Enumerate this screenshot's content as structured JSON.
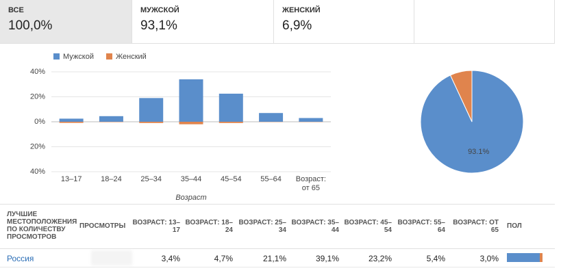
{
  "tabs": [
    {
      "title": "ВСЕ",
      "value": "100,0%"
    },
    {
      "title": "МУЖСКОЙ",
      "value": "93,1%"
    },
    {
      "title": "ЖЕНСКИЙ",
      "value": "6,9%"
    }
  ],
  "chart_data": [
    {
      "type": "bar",
      "x_label": "Возраст",
      "categories": [
        "13–17",
        "18–24",
        "25–34",
        "35–44",
        "45–54",
        "55–64",
        "Возраст: от 65"
      ],
      "series": [
        {
          "name": "Мужской",
          "color": "#5a8ecb",
          "values": [
            2.5,
            4.5,
            19,
            34,
            22.5,
            7,
            3
          ]
        },
        {
          "name": "Женский",
          "color": "#e0844d",
          "values": [
            -0.9,
            -0.3,
            -1.0,
            -2.0,
            -1.0,
            -0.2,
            -0.2
          ]
        }
      ],
      "ylim": [
        -40,
        40
      ],
      "yticks": [
        {
          "value": -40,
          "label": "40%"
        },
        {
          "value": -20,
          "label": "20%"
        },
        {
          "value": 0,
          "label": "0%"
        },
        {
          "value": 20,
          "label": "20%"
        },
        {
          "value": 40,
          "label": "40%"
        }
      ],
      "grid": true
    },
    {
      "type": "pie",
      "values": [
        93.1,
        6.9
      ],
      "colors": [
        "#5a8ecb",
        "#e0844d"
      ],
      "value_labels": [
        "93.1%",
        null
      ]
    }
  ],
  "table": {
    "headers": [
      "ЛУЧШИЕ МЕСТОПОЛОЖЕНИЯ ПО КОЛИЧЕСТВУ ПРОСМОТРОВ",
      "ПРОСМОТРЫ",
      "ВОЗРАСТ: 13–17",
      "ВОЗРАСТ: 18–24",
      "ВОЗРАСТ: 25–34",
      "ВОЗРАСТ: 35–44",
      "ВОЗРАСТ: 45–54",
      "ВОЗРАСТ: 55–64",
      "ВОЗРАСТ: ОТ 65",
      "ПОЛ"
    ],
    "rows": [
      {
        "location": "Россия",
        "ages": [
          "3,4%",
          "4,7%",
          "21,1%",
          "39,1%",
          "23,2%",
          "5,4%",
          "3,0%"
        ],
        "gender_bar": [
          93.1,
          6.9
        ]
      }
    ]
  }
}
